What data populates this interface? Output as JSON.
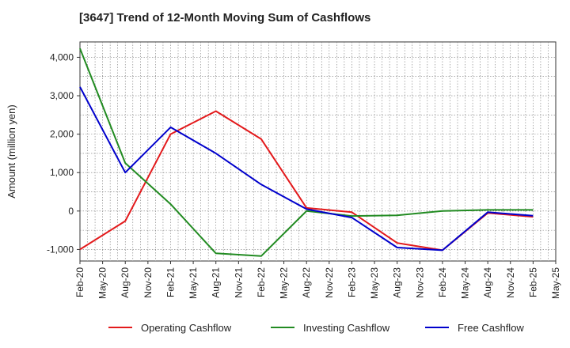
{
  "chart_data": {
    "type": "line",
    "title": "[3647]  Trend of 12-Month Moving Sum of Cashflows",
    "ylabel": "Amount (million yen)",
    "xlabel": "",
    "ylim": [
      -1300,
      4400
    ],
    "yticks": [
      -1000,
      0,
      1000,
      2000,
      3000,
      4000
    ],
    "ytick_labels": [
      "-1,000",
      "0",
      "1,000",
      "2,000",
      "3,000",
      "4,000"
    ],
    "x": [
      "Feb-20",
      "May-20",
      "Aug-20",
      "Nov-20",
      "Feb-21",
      "May-21",
      "Aug-21",
      "Nov-21",
      "Feb-22",
      "May-22",
      "Aug-22",
      "Nov-22",
      "Feb-23",
      "May-23",
      "Aug-23",
      "Nov-23",
      "Feb-24",
      "May-24",
      "Aug-24",
      "Nov-24",
      "Feb-25",
      "May-25"
    ],
    "grid": true,
    "legend_position": "bottom",
    "series": [
      {
        "name": "Operating Cashflow",
        "color": "#e31a1c",
        "points": [
          [
            "Feb-20",
            -1000
          ],
          [
            "Aug-20",
            -260
          ],
          [
            "Feb-21",
            2000
          ],
          [
            "Aug-21",
            2600
          ],
          [
            "Feb-22",
            1870
          ],
          [
            "Aug-22",
            80
          ],
          [
            "Feb-23",
            -30
          ],
          [
            "Aug-23",
            -830
          ],
          [
            "Feb-24",
            -1020
          ],
          [
            "Aug-24",
            -50
          ],
          [
            "Feb-25",
            -150
          ]
        ]
      },
      {
        "name": "Investing Cashflow",
        "color": "#228b22",
        "points": [
          [
            "Feb-20",
            4230
          ],
          [
            "Aug-20",
            1250
          ],
          [
            "Feb-21",
            180
          ],
          [
            "Aug-21",
            -1100
          ],
          [
            "Feb-22",
            -1170
          ],
          [
            "Aug-22",
            0
          ],
          [
            "Feb-23",
            -130
          ],
          [
            "Aug-23",
            -110
          ],
          [
            "Feb-24",
            0
          ],
          [
            "Aug-24",
            30
          ],
          [
            "Feb-25",
            30
          ]
        ]
      },
      {
        "name": "Free Cashflow",
        "color": "#0000cc",
        "points": [
          [
            "Feb-20",
            3230
          ],
          [
            "Aug-20",
            1000
          ],
          [
            "Feb-21",
            2180
          ],
          [
            "Aug-21",
            1500
          ],
          [
            "Feb-22",
            690
          ],
          [
            "Aug-22",
            50
          ],
          [
            "Feb-23",
            -170
          ],
          [
            "Aug-23",
            -950
          ],
          [
            "Feb-24",
            -1020
          ],
          [
            "Aug-24",
            -30
          ],
          [
            "Feb-25",
            -120
          ]
        ]
      }
    ]
  }
}
